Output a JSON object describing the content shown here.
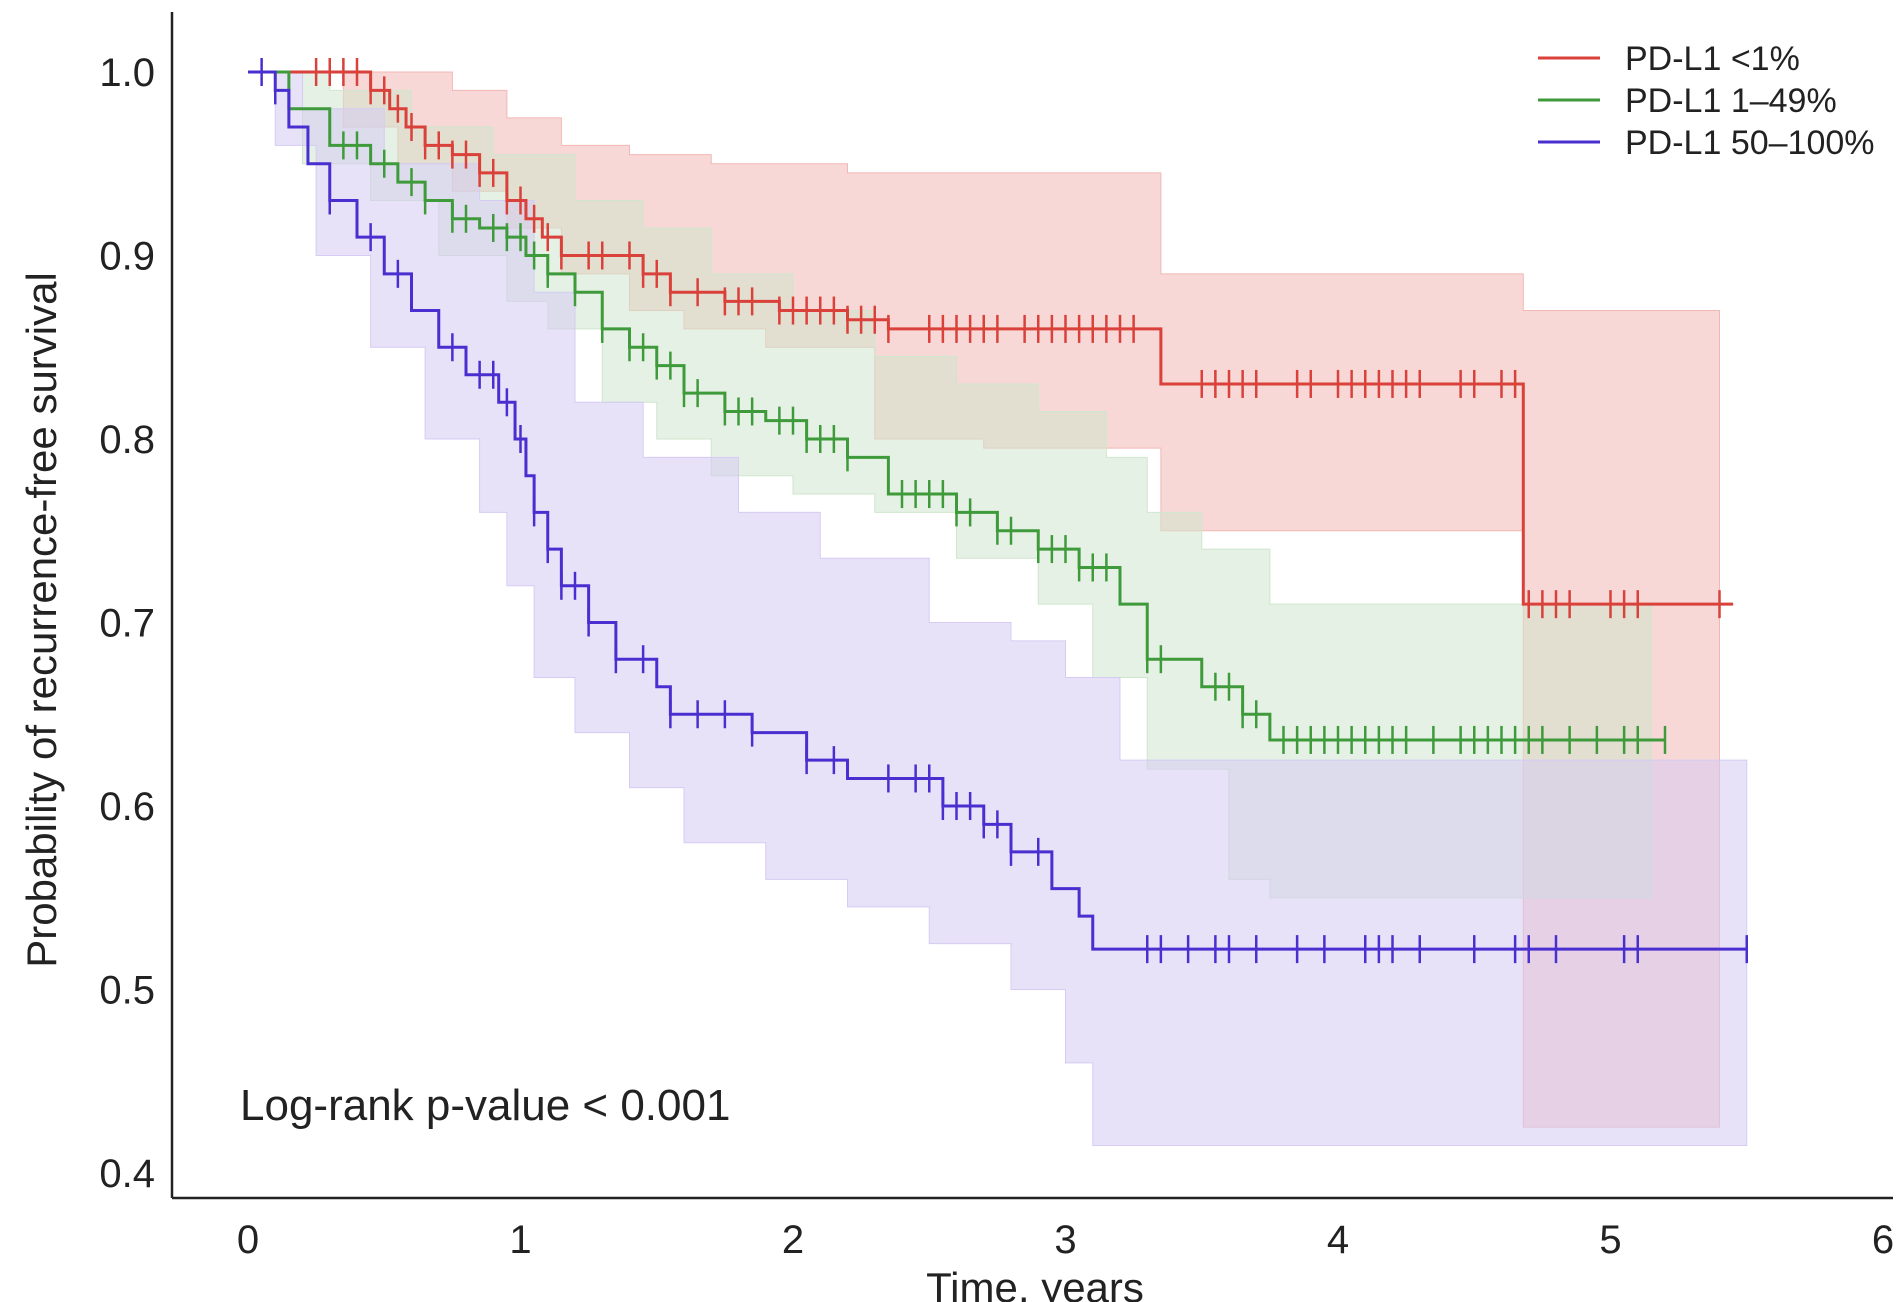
{
  "chart_data": {
    "type": "line",
    "subtype": "kaplan-meier",
    "xlabel": "Time, years",
    "ylabel": "Probability of recurrence-free survival",
    "xlim": [
      0,
      6
    ],
    "ylim": [
      0.4,
      1.0
    ],
    "x_ticks": [
      "0",
      "1",
      "2",
      "3",
      "4",
      "5",
      "6"
    ],
    "y_ticks": [
      "0.4",
      "0.5",
      "0.6",
      "0.7",
      "0.8",
      "0.9",
      "1.0"
    ],
    "grid": false,
    "legend_position": "top-right",
    "annotation": "Log-rank p-value < 0.001",
    "series": [
      {
        "name": "PD-L1 <1%",
        "color": "#d9413a",
        "band_color": "#f2b8b4",
        "steps": [
          [
            0,
            1.0
          ],
          [
            0.45,
            0.99
          ],
          [
            0.52,
            0.98
          ],
          [
            0.58,
            0.97
          ],
          [
            0.65,
            0.96
          ],
          [
            0.75,
            0.955
          ],
          [
            0.85,
            0.945
          ],
          [
            0.95,
            0.93
          ],
          [
            1.02,
            0.92
          ],
          [
            1.08,
            0.91
          ],
          [
            1.15,
            0.9
          ],
          [
            1.45,
            0.89
          ],
          [
            1.55,
            0.88
          ],
          [
            1.75,
            0.875
          ],
          [
            1.95,
            0.87
          ],
          [
            2.2,
            0.865
          ],
          [
            2.35,
            0.86
          ],
          [
            3.35,
            0.83
          ],
          [
            4.68,
            0.71
          ],
          [
            5.45,
            0.71
          ]
        ],
        "lower": [
          [
            0,
            1.0
          ],
          [
            0.35,
            0.97
          ],
          [
            0.55,
            0.95
          ],
          [
            0.75,
            0.935
          ],
          [
            0.95,
            0.915
          ],
          [
            1.15,
            0.89
          ],
          [
            1.4,
            0.87
          ],
          [
            1.6,
            0.86
          ],
          [
            1.9,
            0.85
          ],
          [
            2.3,
            0.8
          ],
          [
            2.7,
            0.795
          ],
          [
            3.35,
            0.75
          ],
          [
            4.68,
            0.425
          ],
          [
            5.4,
            0.425
          ]
        ],
        "upper": [
          [
            0,
            1.0
          ],
          [
            0.55,
            1.0
          ],
          [
            0.75,
            0.99
          ],
          [
            0.95,
            0.975
          ],
          [
            1.15,
            0.96
          ],
          [
            1.4,
            0.955
          ],
          [
            1.7,
            0.95
          ],
          [
            2.2,
            0.945
          ],
          [
            3.35,
            0.89
          ],
          [
            4.68,
            0.87
          ],
          [
            5.4,
            0.87
          ]
        ],
        "censor_x": [
          0.25,
          0.3,
          0.35,
          0.4,
          0.45,
          0.5,
          0.55,
          0.6,
          0.65,
          0.7,
          0.75,
          0.8,
          0.85,
          0.9,
          0.95,
          1.0,
          1.05,
          1.1,
          1.15,
          1.25,
          1.3,
          1.4,
          1.45,
          1.5,
          1.55,
          1.65,
          1.75,
          1.8,
          1.85,
          1.95,
          2.0,
          2.05,
          2.1,
          2.15,
          2.2,
          2.25,
          2.3,
          2.35,
          2.5,
          2.55,
          2.6,
          2.65,
          2.7,
          2.75,
          2.85,
          2.9,
          2.95,
          3.0,
          3.05,
          3.1,
          3.15,
          3.2,
          3.25,
          3.5,
          3.55,
          3.6,
          3.65,
          3.7,
          3.85,
          3.9,
          4.0,
          4.05,
          4.1,
          4.15,
          4.2,
          4.25,
          4.3,
          4.45,
          4.5,
          4.6,
          4.65,
          4.7,
          4.75,
          4.8,
          4.85,
          5.0,
          5.05,
          5.1,
          5.4
        ]
      },
      {
        "name": "PD-L1 1–49%",
        "color": "#3e9a3a",
        "band_color": "#cfe6cd",
        "steps": [
          [
            0,
            1.0
          ],
          [
            0.15,
            0.98
          ],
          [
            0.3,
            0.96
          ],
          [
            0.45,
            0.95
          ],
          [
            0.55,
            0.94
          ],
          [
            0.65,
            0.93
          ],
          [
            0.75,
            0.92
          ],
          [
            0.85,
            0.915
          ],
          [
            0.95,
            0.91
          ],
          [
            1.02,
            0.9
          ],
          [
            1.1,
            0.89
          ],
          [
            1.2,
            0.88
          ],
          [
            1.3,
            0.86
          ],
          [
            1.4,
            0.85
          ],
          [
            1.5,
            0.84
          ],
          [
            1.6,
            0.825
          ],
          [
            1.75,
            0.815
          ],
          [
            1.9,
            0.81
          ],
          [
            2.05,
            0.8
          ],
          [
            2.2,
            0.79
          ],
          [
            2.35,
            0.77
          ],
          [
            2.6,
            0.76
          ],
          [
            2.75,
            0.75
          ],
          [
            2.9,
            0.74
          ],
          [
            3.05,
            0.73
          ],
          [
            3.2,
            0.71
          ],
          [
            3.3,
            0.68
          ],
          [
            3.5,
            0.665
          ],
          [
            3.65,
            0.65
          ],
          [
            3.75,
            0.636
          ],
          [
            5.2,
            0.636
          ]
        ],
        "lower": [
          [
            0,
            1.0
          ],
          [
            0.2,
            0.95
          ],
          [
            0.45,
            0.93
          ],
          [
            0.7,
            0.9
          ],
          [
            0.95,
            0.875
          ],
          [
            1.1,
            0.86
          ],
          [
            1.3,
            0.82
          ],
          [
            1.5,
            0.8
          ],
          [
            1.7,
            0.78
          ],
          [
            2.0,
            0.77
          ],
          [
            2.3,
            0.76
          ],
          [
            2.6,
            0.735
          ],
          [
            2.9,
            0.71
          ],
          [
            3.1,
            0.67
          ],
          [
            3.3,
            0.62
          ],
          [
            3.6,
            0.56
          ],
          [
            3.75,
            0.55
          ],
          [
            5.15,
            0.55
          ]
        ],
        "upper": [
          [
            0,
            1.0
          ],
          [
            0.3,
            0.99
          ],
          [
            0.6,
            0.97
          ],
          [
            0.9,
            0.955
          ],
          [
            1.2,
            0.93
          ],
          [
            1.45,
            0.915
          ],
          [
            1.7,
            0.89
          ],
          [
            2.0,
            0.87
          ],
          [
            2.3,
            0.845
          ],
          [
            2.6,
            0.83
          ],
          [
            2.9,
            0.815
          ],
          [
            3.15,
            0.79
          ],
          [
            3.3,
            0.76
          ],
          [
            3.5,
            0.74
          ],
          [
            3.75,
            0.71
          ],
          [
            5.15,
            0.71
          ]
        ],
        "censor_x": [
          0.35,
          0.4,
          0.5,
          0.6,
          0.65,
          0.75,
          0.8,
          0.9,
          0.95,
          1.0,
          1.05,
          1.1,
          1.2,
          1.3,
          1.4,
          1.45,
          1.5,
          1.55,
          1.6,
          1.65,
          1.75,
          1.8,
          1.85,
          1.95,
          2.0,
          2.05,
          2.1,
          2.15,
          2.2,
          2.4,
          2.45,
          2.5,
          2.55,
          2.6,
          2.65,
          2.75,
          2.8,
          2.9,
          2.95,
          3.0,
          3.05,
          3.1,
          3.15,
          3.3,
          3.35,
          3.55,
          3.6,
          3.65,
          3.7,
          3.8,
          3.85,
          3.9,
          3.95,
          4.0,
          4.05,
          4.1,
          4.15,
          4.2,
          4.25,
          4.35,
          4.45,
          4.5,
          4.55,
          4.6,
          4.65,
          4.7,
          4.75,
          4.85,
          4.95,
          5.05,
          5.1,
          5.2
        ]
      },
      {
        "name": "PD-L1 50–100%",
        "color": "#4a2fd0",
        "band_color": "#d5cbf3",
        "steps": [
          [
            0,
            1.0
          ],
          [
            0.1,
            0.99
          ],
          [
            0.15,
            0.97
          ],
          [
            0.22,
            0.95
          ],
          [
            0.3,
            0.93
          ],
          [
            0.4,
            0.91
          ],
          [
            0.5,
            0.89
          ],
          [
            0.6,
            0.87
          ],
          [
            0.7,
            0.85
          ],
          [
            0.8,
            0.835
          ],
          [
            0.92,
            0.82
          ],
          [
            0.98,
            0.8
          ],
          [
            1.02,
            0.78
          ],
          [
            1.05,
            0.76
          ],
          [
            1.1,
            0.74
          ],
          [
            1.15,
            0.72
          ],
          [
            1.25,
            0.7
          ],
          [
            1.35,
            0.68
          ],
          [
            1.5,
            0.665
          ],
          [
            1.55,
            0.65
          ],
          [
            1.85,
            0.64
          ],
          [
            2.05,
            0.625
          ],
          [
            2.2,
            0.615
          ],
          [
            2.55,
            0.6
          ],
          [
            2.7,
            0.59
          ],
          [
            2.8,
            0.575
          ],
          [
            2.95,
            0.555
          ],
          [
            3.05,
            0.54
          ],
          [
            3.1,
            0.522
          ],
          [
            5.5,
            0.522
          ]
        ],
        "lower": [
          [
            0,
            1.0
          ],
          [
            0.1,
            0.96
          ],
          [
            0.25,
            0.9
          ],
          [
            0.45,
            0.85
          ],
          [
            0.65,
            0.8
          ],
          [
            0.85,
            0.76
          ],
          [
            0.95,
            0.72
          ],
          [
            1.05,
            0.67
          ],
          [
            1.2,
            0.64
          ],
          [
            1.4,
            0.61
          ],
          [
            1.6,
            0.58
          ],
          [
            1.9,
            0.56
          ],
          [
            2.2,
            0.545
          ],
          [
            2.5,
            0.525
          ],
          [
            2.8,
            0.5
          ],
          [
            3.0,
            0.46
          ],
          [
            3.1,
            0.415
          ],
          [
            5.5,
            0.415
          ]
        ],
        "upper": [
          [
            0,
            1.0
          ],
          [
            0.2,
            0.98
          ],
          [
            0.5,
            0.95
          ],
          [
            0.85,
            0.93
          ],
          [
            1.05,
            0.88
          ],
          [
            1.2,
            0.82
          ],
          [
            1.45,
            0.79
          ],
          [
            1.8,
            0.76
          ],
          [
            2.1,
            0.735
          ],
          [
            2.5,
            0.7
          ],
          [
            2.8,
            0.69
          ],
          [
            3.0,
            0.67
          ],
          [
            3.2,
            0.625
          ],
          [
            5.5,
            0.625
          ]
        ],
        "censor_x": [
          0.05,
          0.1,
          0.3,
          0.45,
          0.55,
          0.75,
          0.85,
          0.9,
          0.95,
          1.0,
          1.05,
          1.1,
          1.15,
          1.2,
          1.25,
          1.35,
          1.45,
          1.55,
          1.65,
          1.75,
          1.85,
          2.05,
          2.15,
          2.35,
          2.45,
          2.5,
          2.55,
          2.6,
          2.65,
          2.7,
          2.75,
          2.8,
          2.9,
          3.3,
          3.35,
          3.45,
          3.55,
          3.6,
          3.7,
          3.85,
          3.95,
          4.1,
          4.15,
          4.2,
          4.3,
          4.5,
          4.65,
          4.7,
          4.8,
          5.05,
          5.1,
          5.5
        ]
      }
    ]
  }
}
